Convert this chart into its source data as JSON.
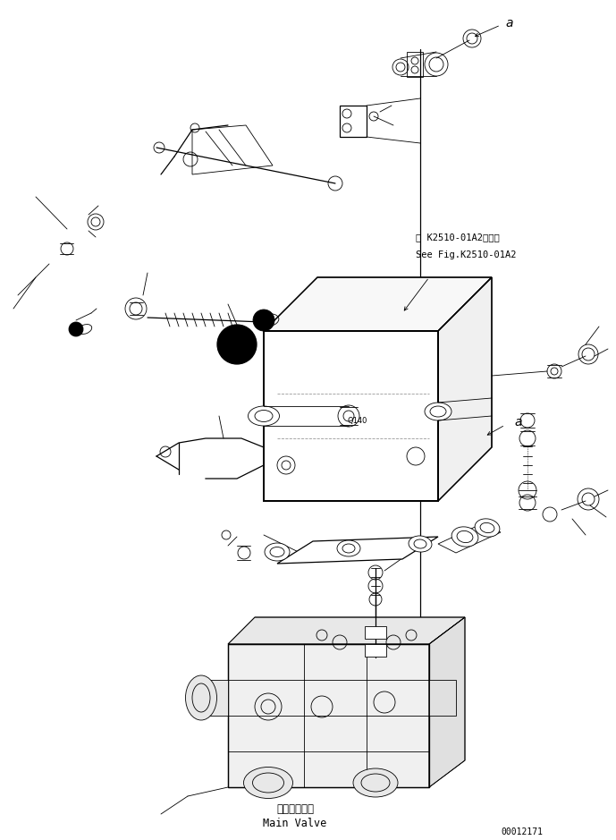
{
  "bg_color": "#ffffff",
  "line_color": "#000000",
  "fig_width": 6.89,
  "fig_height": 9.39,
  "dpi": 100,
  "ref_text_line1": "第 K2510-01A2図参照",
  "ref_text_line2": "See Fig.K2510-01A2",
  "label_main_valve_jp": "メインバルブ",
  "label_main_valve_en": "Main Valve",
  "part_number": "00012171"
}
